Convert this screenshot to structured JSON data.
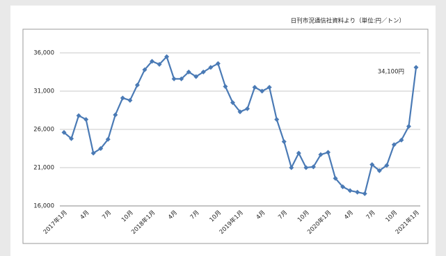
{
  "chart_data": {
    "type": "line",
    "title": "日刊市況通信社資料より（単位:円／トン）",
    "annotation": "34,100円",
    "categories": [
      "2017年1月",
      null,
      null,
      "4月",
      null,
      null,
      "7月",
      null,
      null,
      "10月",
      null,
      null,
      "2018年1月",
      null,
      null,
      "4月",
      null,
      null,
      "7月",
      null,
      null,
      "10月",
      null,
      null,
      "2019年1月",
      null,
      null,
      "4月",
      null,
      null,
      "7月",
      null,
      null,
      "10月",
      null,
      null,
      "2020年1月",
      null,
      null,
      "4月",
      null,
      null,
      "7月",
      null,
      null,
      "10月",
      null,
      null,
      "2021年1月"
    ],
    "series": [
      {
        "color": "#4a7ab5",
        "values": [
          25600,
          24800,
          27800,
          27300,
          22900,
          23500,
          24700,
          27900,
          30100,
          29800,
          31800,
          33800,
          34900,
          34500,
          35500,
          32600,
          32600,
          33500,
          32900,
          33500,
          34100,
          34600,
          31600,
          29500,
          28300,
          28700,
          31500,
          31000,
          31500,
          27300,
          24400,
          21000,
          22900,
          21000,
          21100,
          22700,
          23000,
          19600,
          18500,
          18000,
          17800,
          17600,
          21400,
          20600,
          21300,
          24000,
          24600,
          26400,
          34100
        ]
      }
    ],
    "ylim": [
      16000,
      36000
    ],
    "yticks": [
      {
        "value": 16000,
        "label": "16,000"
      },
      {
        "value": 21000,
        "label": "21,000"
      },
      {
        "value": 26000,
        "label": "26,000"
      },
      {
        "value": 31000,
        "label": "31,000"
      },
      {
        "value": 36000,
        "label": "36,000"
      }
    ],
    "grid": true
  }
}
